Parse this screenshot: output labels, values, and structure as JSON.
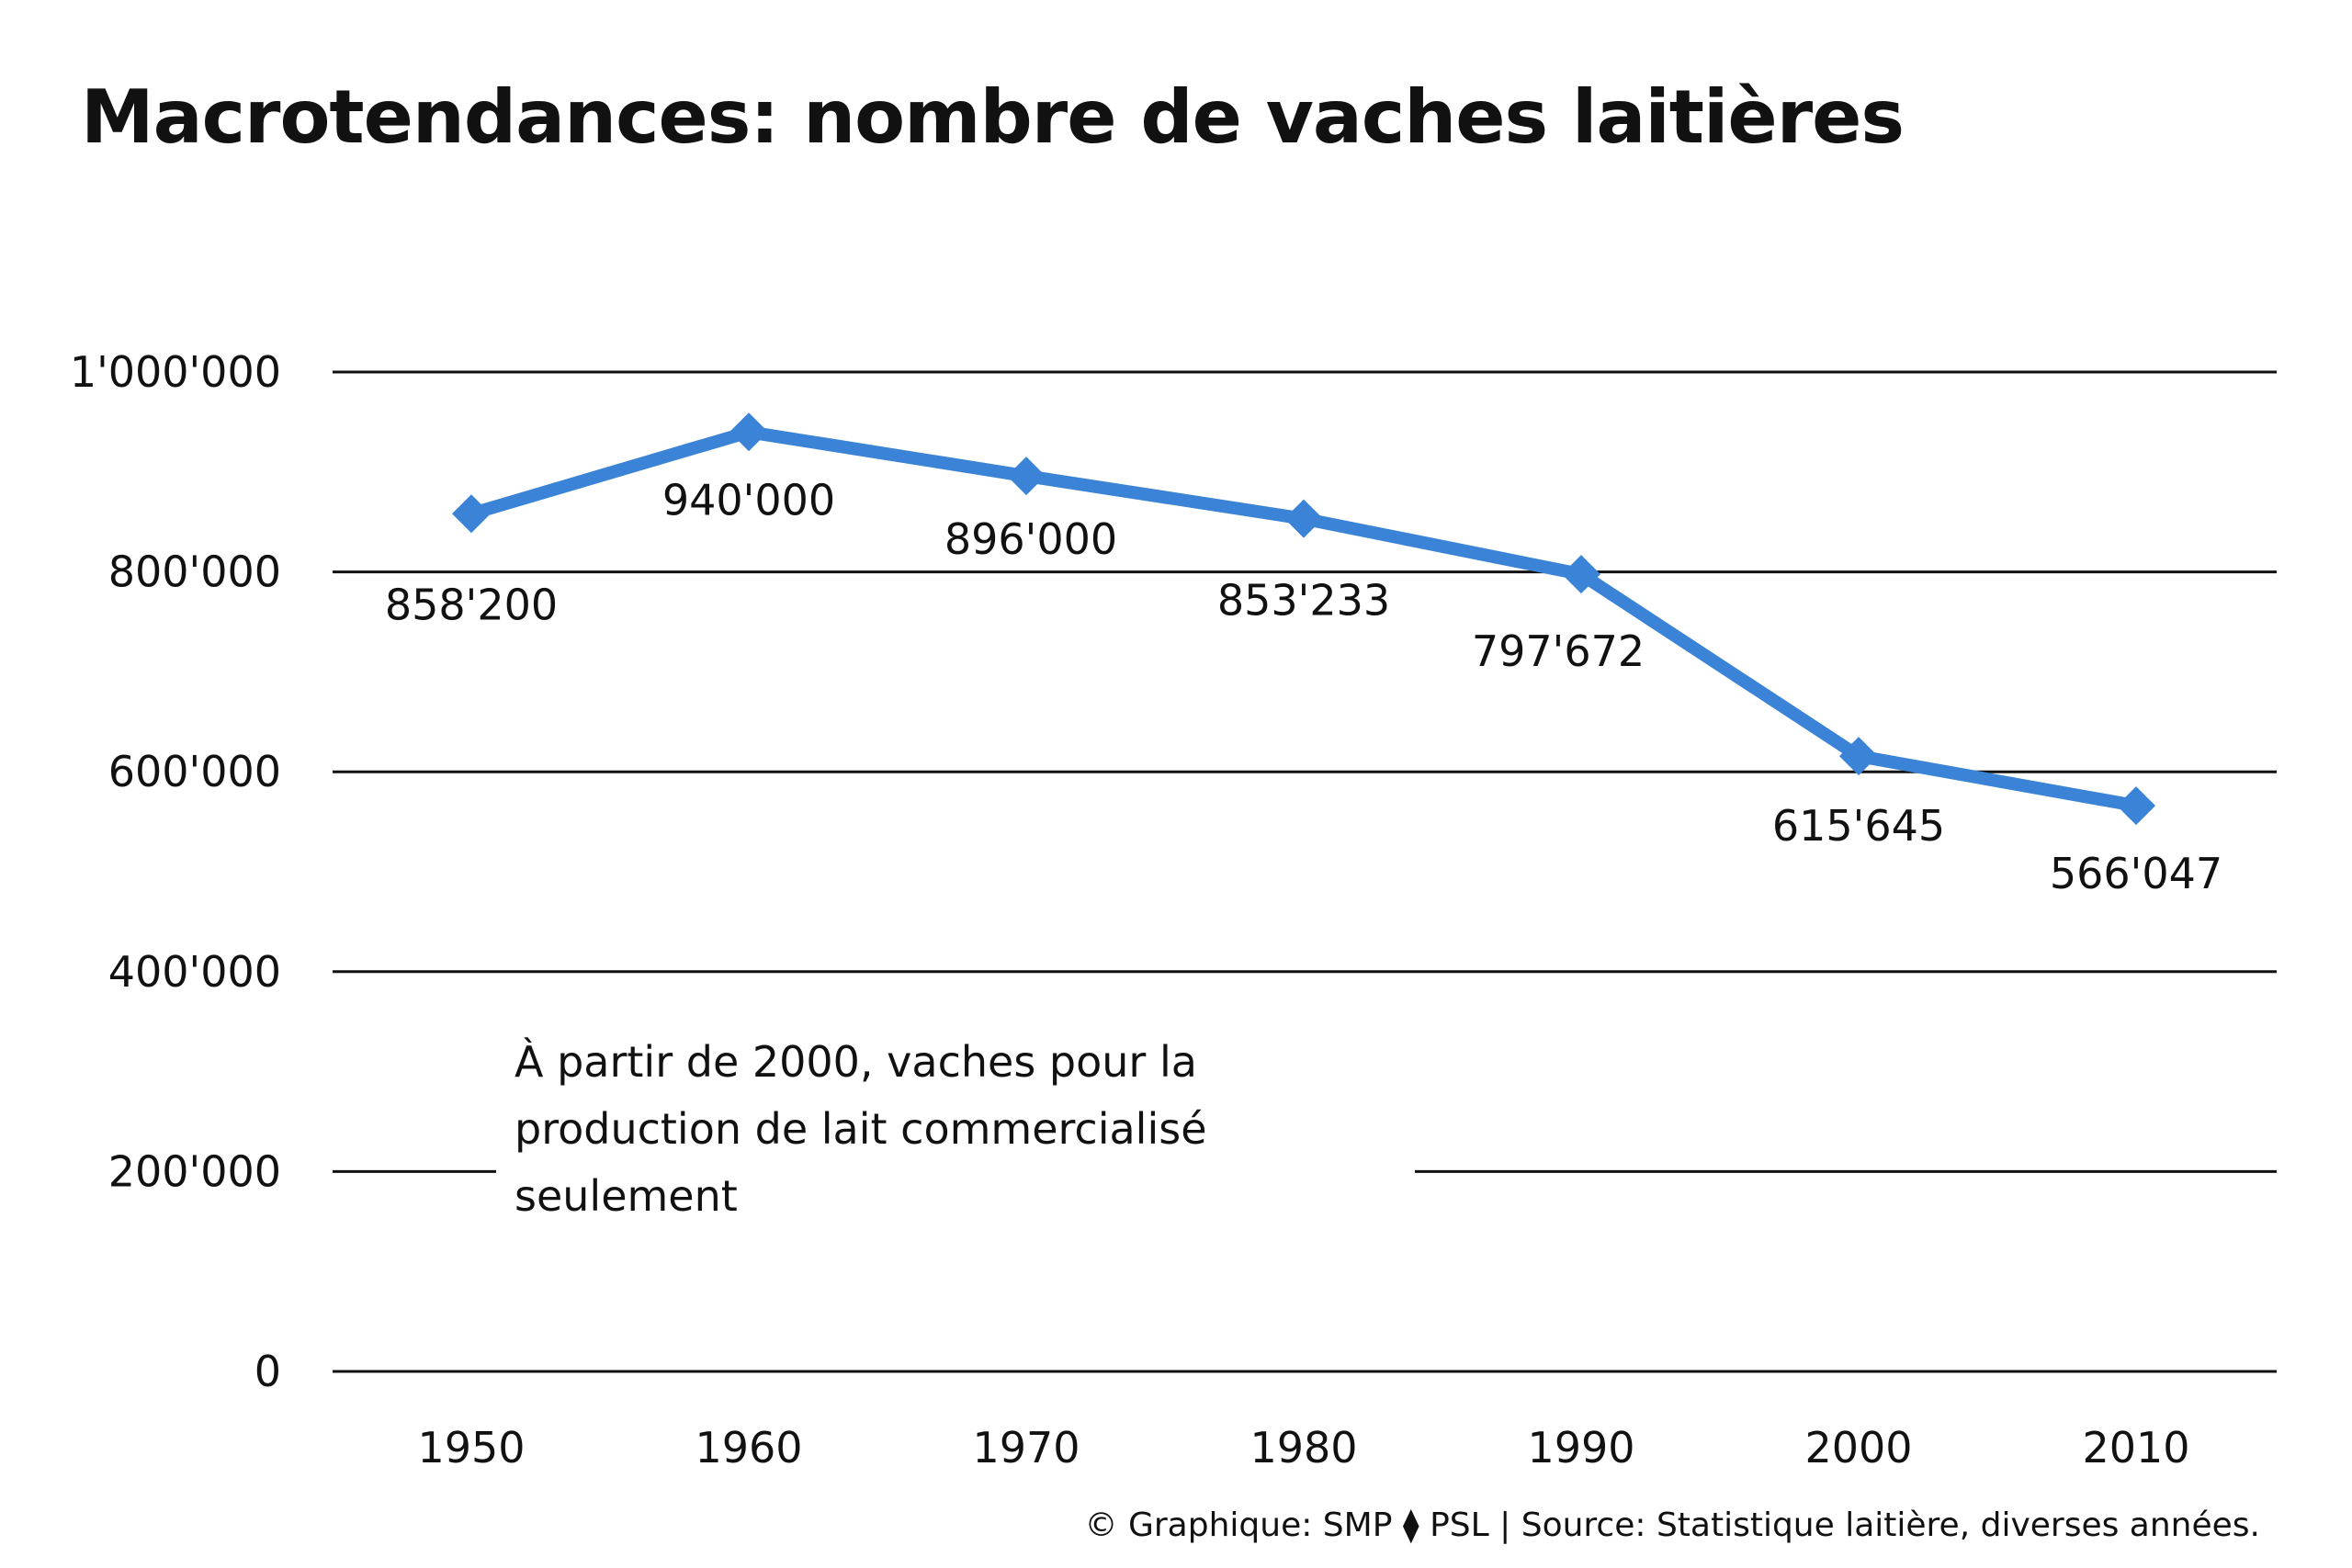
{
  "title": "Macrotendances: nombre de vaches laitières",
  "note": "À partir de 2000, vaches pour la production de lait commercialisé seulement",
  "credit": "© Graphique: SMP ⧫ PSL | Source: Statistique laitière, diverses années.",
  "colors": {
    "line": "#3A83D6",
    "grid": "#111111",
    "text": "#111111"
  },
  "chart_data": {
    "type": "line",
    "title": "Macrotendances: nombre de vaches laitières",
    "xlabel": "",
    "ylabel": "",
    "categories": [
      "1950",
      "1960",
      "1970",
      "1980",
      "1990",
      "2000",
      "2010"
    ],
    "series": [
      {
        "values": [
          858200,
          940000,
          896000,
          853233,
          797672,
          615645,
          566047
        ]
      }
    ],
    "data_labels": [
      "858'200",
      "940'000",
      "896'000",
      "853'233",
      "797'672",
      "615'645",
      "566'047"
    ],
    "ylim": [
      0,
      1000000
    ],
    "yticks": [
      0,
      200000,
      400000,
      600000,
      800000,
      1000000
    ],
    "ytick_labels": [
      "0",
      "200'000",
      "400'000",
      "600'000",
      "800'000",
      "1'000'000"
    ],
    "grid": true,
    "legend": "none",
    "marker": "diamond"
  }
}
